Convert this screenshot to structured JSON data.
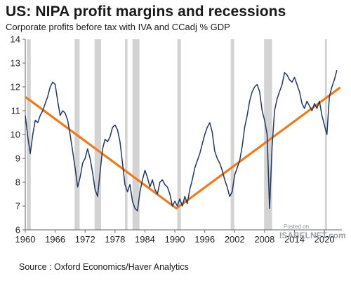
{
  "title": "US: NIPA profit margins and recessions",
  "subtitle": "Corporate profits before tax with IVA and CCadj % GDP",
  "source": "Source : Oxford Economics/Haver Analytics",
  "watermark": {
    "line1": "Posted on",
    "line2": "ISABELNET.com"
  },
  "colors": {
    "series": "#1f3864",
    "trend": "#f07b1a",
    "recession": "#d3d3d3",
    "axis": "#666666"
  },
  "chart_data": {
    "type": "line",
    "title": "US: NIPA profit margins and recessions",
    "subtitle": "Corporate profits before tax with IVA and CCadj % GDP",
    "xlim": [
      1960,
      2023.5
    ],
    "ylim": [
      6,
      14
    ],
    "xticks": [
      1960,
      1966,
      1972,
      1978,
      1984,
      1990,
      1996,
      2002,
      2008,
      2014,
      2020
    ],
    "yticks": [
      6,
      7,
      8,
      9,
      10,
      11,
      12,
      13,
      14
    ],
    "grid": false,
    "legend": "none",
    "recessions": [
      [
        1960.3,
        1961.1
      ],
      [
        1969.9,
        1970.9
      ],
      [
        1973.9,
        1975.2
      ],
      [
        1980.0,
        1980.5
      ],
      [
        1981.5,
        1982.9
      ],
      [
        1990.5,
        1991.2
      ],
      [
        2001.2,
        2001.9
      ],
      [
        2007.9,
        2009.5
      ],
      [
        2020.1,
        2020.5
      ]
    ],
    "series": [
      {
        "x": [
          1960.0,
          1960.5,
          1961.0,
          1961.5,
          1962.0,
          1962.5,
          1963.0,
          1963.5,
          1964.0,
          1964.5,
          1965.0,
          1965.5,
          1966.0,
          1966.5,
          1967.0,
          1967.5,
          1968.0,
          1968.5,
          1969.0,
          1969.5,
          1970.0,
          1970.5,
          1971.0,
          1971.5,
          1972.0,
          1972.5,
          1973.0,
          1973.5,
          1974.0,
          1974.5,
          1975.0,
          1975.5,
          1976.0,
          1976.5,
          1977.0,
          1977.5,
          1978.0,
          1978.5,
          1979.0,
          1979.5,
          1980.0,
          1980.5,
          1981.0,
          1981.5,
          1982.0,
          1982.5,
          1983.0,
          1983.5,
          1984.0,
          1984.5,
          1985.0,
          1985.5,
          1986.0,
          1986.5,
          1987.0,
          1987.5,
          1988.0,
          1988.5,
          1989.0,
          1989.5,
          1990.0,
          1990.5,
          1991.0,
          1991.5,
          1992.0,
          1992.5,
          1993.0,
          1993.5,
          1994.0,
          1994.5,
          1995.0,
          1995.5,
          1996.0,
          1996.5,
          1997.0,
          1997.5,
          1998.0,
          1998.5,
          1999.0,
          1999.5,
          2000.0,
          2000.5,
          2001.0,
          2001.5,
          2002.0,
          2002.5,
          2003.0,
          2003.5,
          2004.0,
          2004.5,
          2005.0,
          2005.5,
          2006.0,
          2006.5,
          2007.0,
          2007.5,
          2008.0,
          2008.5,
          2009.0,
          2009.5,
          2010.0,
          2010.5,
          2011.0,
          2011.5,
          2012.0,
          2012.5,
          2013.0,
          2013.5,
          2014.0,
          2014.5,
          2015.0,
          2015.5,
          2016.0,
          2016.5,
          2017.0,
          2017.5,
          2018.0,
          2018.5,
          2019.0,
          2019.5,
          2020.0,
          2020.5,
          2021.0,
          2021.5,
          2022.0,
          2022.5
        ],
        "values": [
          10.8,
          9.9,
          9.2,
          10.0,
          10.6,
          10.5,
          10.8,
          11.0,
          11.3,
          11.6,
          12.0,
          12.2,
          12.1,
          11.4,
          10.8,
          11.0,
          10.9,
          10.6,
          10.0,
          9.3,
          8.6,
          7.8,
          8.2,
          8.8,
          9.0,
          9.4,
          9.0,
          8.4,
          7.7,
          7.4,
          8.4,
          9.4,
          9.8,
          9.7,
          9.9,
          10.3,
          10.4,
          10.2,
          9.7,
          8.8,
          7.9,
          7.6,
          7.9,
          7.2,
          6.9,
          6.8,
          7.6,
          8.1,
          8.5,
          8.2,
          7.8,
          8.1,
          7.7,
          7.5,
          8.0,
          8.1,
          7.9,
          7.8,
          7.5,
          7.0,
          7.2,
          7.0,
          7.3,
          7.0,
          7.4,
          7.1,
          7.7,
          8.1,
          8.6,
          8.9,
          9.2,
          9.6,
          10.0,
          10.3,
          10.5,
          10.1,
          9.3,
          9.0,
          8.8,
          8.5,
          8.1,
          7.8,
          7.4,
          7.6,
          8.3,
          8.6,
          8.9,
          9.5,
          10.3,
          10.8,
          11.4,
          11.8,
          12.0,
          12.1,
          11.8,
          11.0,
          10.6,
          10.0,
          6.9,
          9.5,
          11.0,
          11.5,
          11.8,
          12.1,
          12.6,
          12.5,
          12.3,
          12.2,
          12.4,
          12.1,
          11.8,
          11.3,
          11.1,
          11.4,
          11.2,
          11.0,
          11.3,
          11.1,
          11.4,
          10.8,
          10.4,
          10.0,
          11.6,
          12.0,
          12.3,
          12.7
        ]
      }
    ],
    "trend_lines": [
      {
        "x": [
          1960.2,
          1990.3
        ],
        "values": [
          11.55,
          6.9
        ]
      },
      {
        "x": [
          1990.3,
          2023.0
        ],
        "values": [
          6.9,
          11.95
        ]
      }
    ]
  }
}
